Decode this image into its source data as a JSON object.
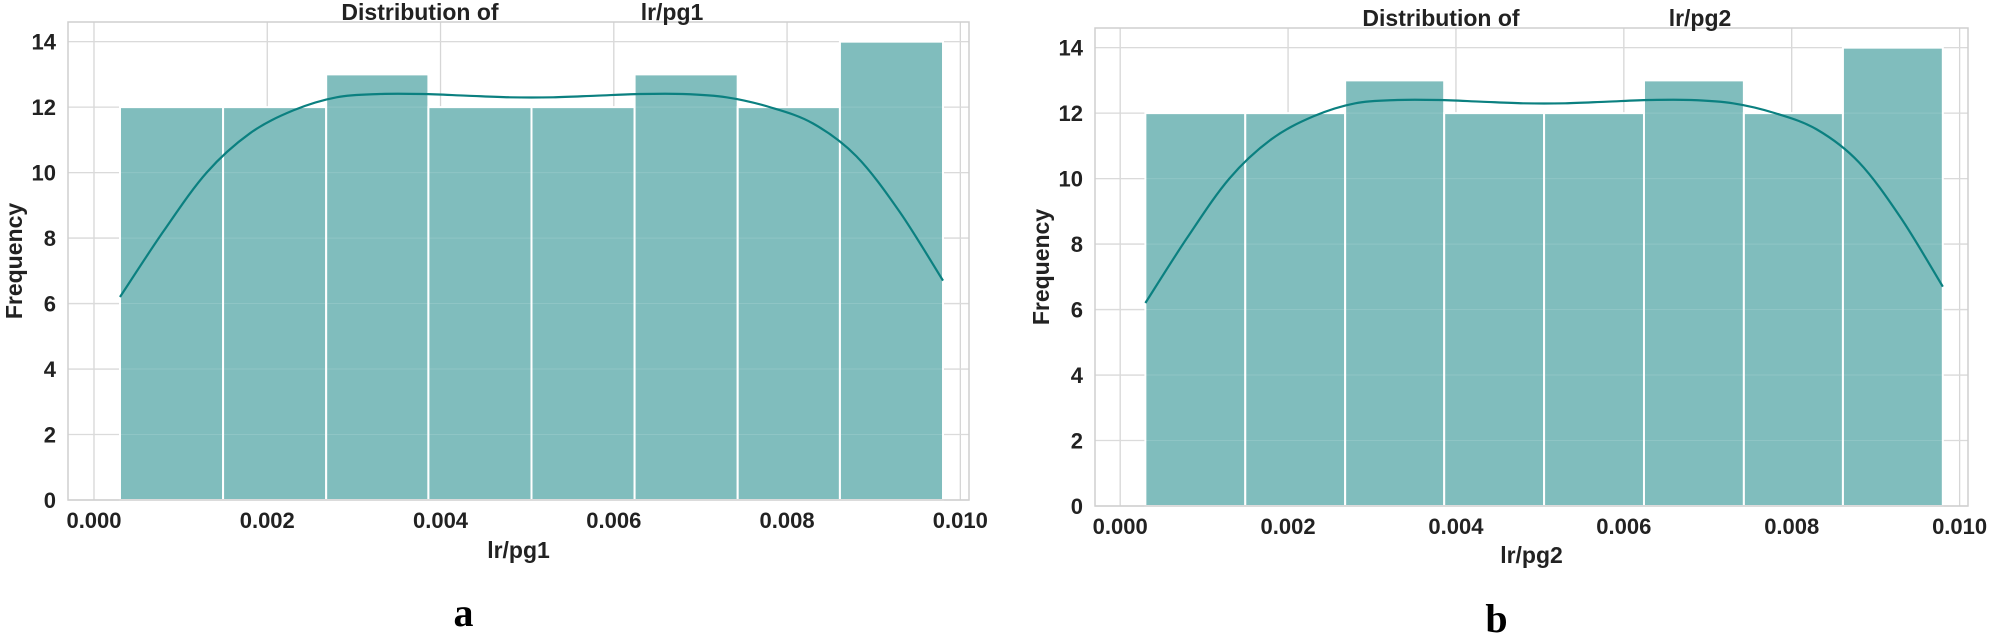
{
  "colors": {
    "bar": "#80bdbd",
    "kde": "#0b8080"
  },
  "chart_data": [
    {
      "type": "histogram",
      "panel_label": "a",
      "title_parts": [
        "Distribution of",
        "lr/pg1"
      ],
      "xlabel": "lr/pg1",
      "ylabel": "Frequency",
      "xlim": [
        -0.0003,
        0.0101
      ],
      "ylim": [
        0,
        14.6
      ],
      "xticks": [
        0.0,
        0.002,
        0.004,
        0.006,
        0.008,
        0.01
      ],
      "xtick_labels": [
        "0.000",
        "0.002",
        "0.004",
        "0.006",
        "0.008",
        "0.010"
      ],
      "yticks": [
        0,
        2,
        4,
        6,
        8,
        10,
        12,
        14
      ],
      "ytick_labels": [
        "0",
        "2",
        "4",
        "6",
        "8",
        "10",
        "12",
        "14"
      ],
      "bin_edges": [
        0.0003,
        0.00149,
        0.00268,
        0.00386,
        0.00505,
        0.00624,
        0.00743,
        0.00861,
        0.0098
      ],
      "counts": [
        12,
        12,
        13,
        12,
        12,
        13,
        12,
        14
      ],
      "kde": {
        "x": [
          0.0003,
          0.0008,
          0.0013,
          0.0018,
          0.0023,
          0.0028,
          0.0033,
          0.0038,
          0.0043,
          0.0048,
          0.0053,
          0.0058,
          0.0063,
          0.0068,
          0.0073,
          0.0078,
          0.0083,
          0.0088,
          0.0093,
          0.0098
        ],
        "y": [
          6.2,
          8.2,
          10.0,
          11.2,
          11.9,
          12.3,
          12.4,
          12.4,
          12.35,
          12.3,
          12.3,
          12.35,
          12.4,
          12.4,
          12.3,
          12.0,
          11.5,
          10.5,
          8.8,
          6.7
        ]
      },
      "grid": true
    },
    {
      "type": "histogram",
      "panel_label": "b",
      "title_parts": [
        "Distribution of",
        "lr/pg2"
      ],
      "xlabel": "lr/pg2",
      "ylabel": "Frequency",
      "xlim": [
        -0.0003,
        0.0101
      ],
      "ylim": [
        0,
        14.6
      ],
      "xticks": [
        0.0,
        0.002,
        0.004,
        0.006,
        0.008,
        0.01
      ],
      "xtick_labels": [
        "0.000",
        "0.002",
        "0.004",
        "0.006",
        "0.008",
        "0.010"
      ],
      "yticks": [
        0,
        2,
        4,
        6,
        8,
        10,
        12,
        14
      ],
      "ytick_labels": [
        "0",
        "2",
        "4",
        "6",
        "8",
        "10",
        "12",
        "14"
      ],
      "bin_edges": [
        0.0003,
        0.00149,
        0.00268,
        0.00386,
        0.00505,
        0.00624,
        0.00743,
        0.00861,
        0.0098
      ],
      "counts": [
        12,
        12,
        13,
        12,
        12,
        13,
        12,
        14
      ],
      "kde": {
        "x": [
          0.0003,
          0.0008,
          0.0013,
          0.0018,
          0.0023,
          0.0028,
          0.0033,
          0.0038,
          0.0043,
          0.0048,
          0.0053,
          0.0058,
          0.0063,
          0.0068,
          0.0073,
          0.0078,
          0.0083,
          0.0088,
          0.0093,
          0.0098
        ],
        "y": [
          6.2,
          8.2,
          10.0,
          11.2,
          11.9,
          12.3,
          12.4,
          12.4,
          12.35,
          12.3,
          12.3,
          12.35,
          12.4,
          12.4,
          12.3,
          12.0,
          11.5,
          10.5,
          8.8,
          6.7
        ]
      },
      "grid": true
    }
  ]
}
